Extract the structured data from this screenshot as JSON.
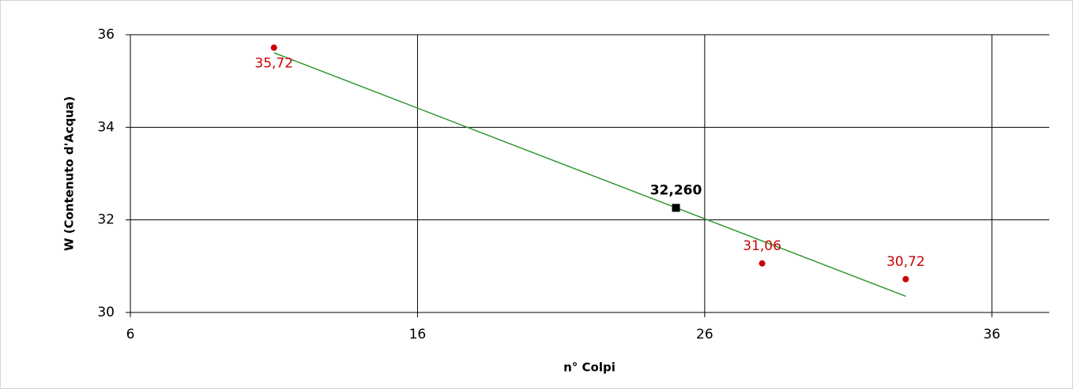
{
  "chart_data": {
    "type": "scatter",
    "x_label": "n° Colpi",
    "y_label": "W (Contenuto d'Acqua)",
    "xlim": [
      6,
      38
    ],
    "ylim": [
      30,
      36
    ],
    "xticks": [
      6,
      16,
      26,
      36
    ],
    "yticks": [
      30,
      32,
      34,
      36
    ],
    "grid": true,
    "series": [
      {
        "type": "scatter",
        "color": "#cc0000",
        "x": [
          11,
          28,
          33
        ],
        "values": [
          35.72,
          31.06,
          30.72
        ],
        "value_labels": [
          "35,72",
          "31,06",
          "30,72"
        ]
      },
      {
        "type": "line",
        "color": "#339933",
        "x": [
          11,
          33
        ],
        "values": [
          35.61,
          30.35
        ]
      },
      {
        "type": "point",
        "color": "#000000",
        "x": [
          25
        ],
        "values": [
          32.26
        ],
        "value_labels": [
          "32,260"
        ]
      }
    ]
  }
}
